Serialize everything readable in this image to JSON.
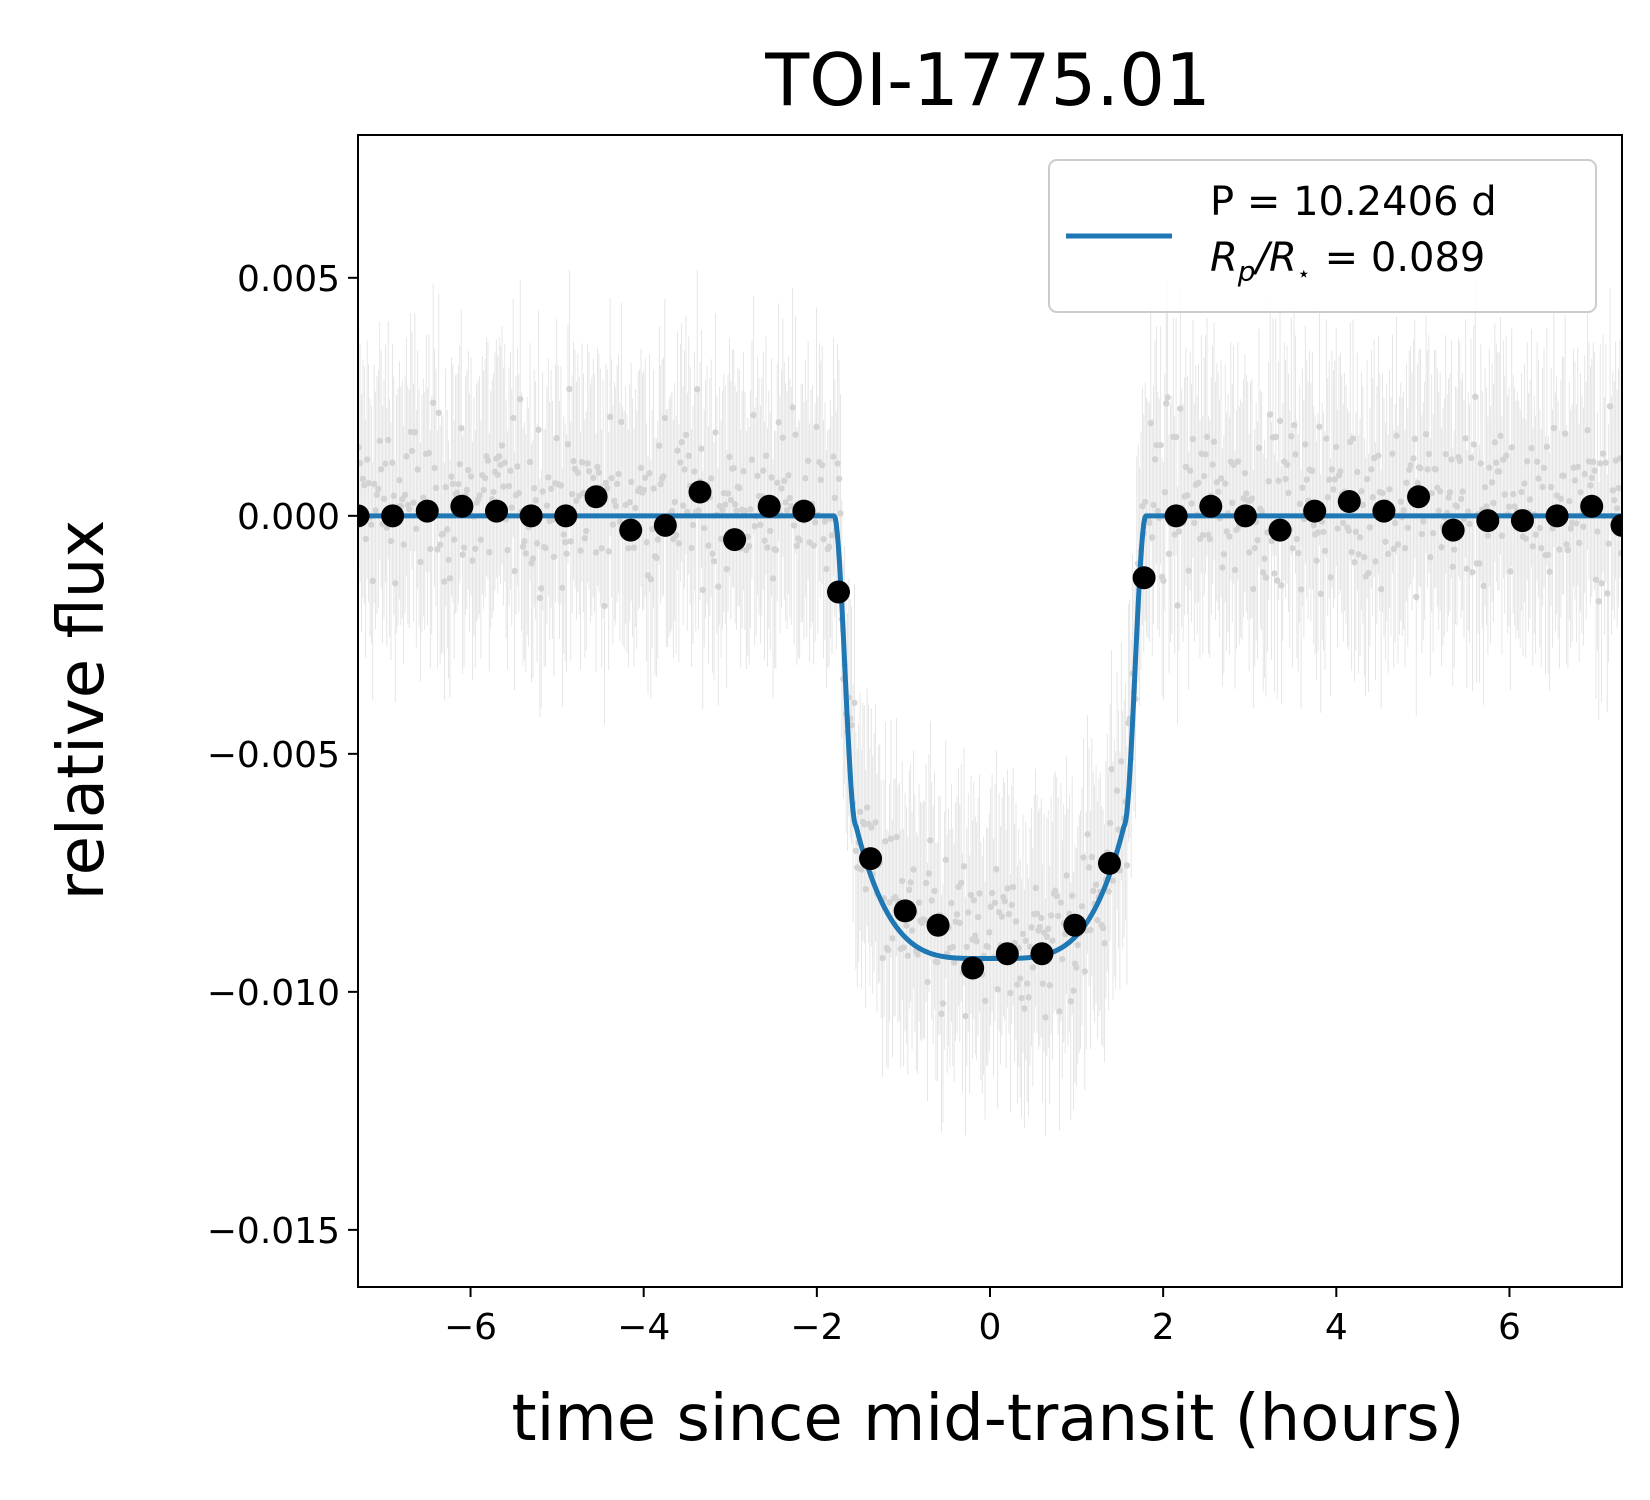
{
  "chart_data": {
    "type": "scatter",
    "title": "TOI-1775.01",
    "xlabel": "time since mid-transit (hours)",
    "ylabel": "relative flux",
    "xlim": [
      -7.3,
      7.3
    ],
    "ylim": [
      -0.0162,
      0.008
    ],
    "x_ticks": [
      -6,
      -4,
      -2,
      0,
      2,
      4,
      6
    ],
    "x_tick_labels": [
      "−6",
      "−4",
      "−2",
      "0",
      "2",
      "4",
      "6"
    ],
    "y_ticks": [
      0.005,
      0.0,
      -0.005,
      -0.01,
      -0.015
    ],
    "y_tick_labels": [
      "0.005",
      "0.000",
      "−0.005",
      "−0.010",
      "−0.015"
    ],
    "legend": {
      "placement": "top-right",
      "period_label": "P = 10.2406 d",
      "radius_ratio": "= 0.089",
      "radius_symbol_R": "R",
      "radius_symbol_p": "p",
      "radius_symbol_Rstar": "/R",
      "radius_symbol_star": "⋆"
    },
    "model": {
      "name": "P = 10.2406 d",
      "color": "#1f77b4",
      "depth": -0.0093,
      "t1": -1.8,
      "t2": -1.55,
      "t3": 1.55,
      "t4": 1.8,
      "x": [
        -7.3,
        -1.8,
        -1.7,
        -1.6,
        -1.55,
        -1.4,
        -1.2,
        -1.0,
        -0.8,
        -0.6,
        -0.4,
        -0.2,
        0.0,
        0.2,
        0.4,
        0.6,
        0.8,
        1.0,
        1.2,
        1.4,
        1.55,
        1.6,
        1.7,
        1.8,
        7.3
      ],
      "y": [
        0.0,
        0.0,
        -0.0018,
        -0.0048,
        -0.0065,
        -0.0078,
        -0.0085,
        -0.0089,
        -0.0091,
        -0.0092,
        -0.0093,
        -0.0093,
        -0.0093,
        -0.0093,
        -0.0093,
        -0.0092,
        -0.0091,
        -0.0089,
        -0.0085,
        -0.0078,
        -0.0065,
        -0.0048,
        -0.0018,
        0.0,
        0.0
      ]
    },
    "binned": {
      "color": "#000000",
      "x": [
        -7.3,
        -6.9,
        -6.5,
        -6.1,
        -5.7,
        -5.3,
        -4.9,
        -4.55,
        -4.15,
        -3.75,
        -3.35,
        -2.95,
        -2.55,
        -2.15,
        -1.75,
        -1.38,
        -0.98,
        -0.6,
        -0.2,
        0.2,
        0.6,
        0.98,
        1.38,
        1.78,
        2.15,
        2.55,
        2.95,
        3.35,
        3.75,
        4.15,
        4.55,
        4.95,
        5.35,
        5.75,
        6.15,
        6.55,
        6.95,
        7.3
      ],
      "y": [
        0.0,
        0.0,
        0.0001,
        0.0002,
        0.0001,
        0.0,
        0.0,
        0.0004,
        -0.0003,
        -0.0002,
        0.0005,
        -0.0005,
        0.0002,
        0.0001,
        -0.0016,
        -0.0072,
        -0.0083,
        -0.0086,
        -0.0095,
        -0.0092,
        -0.0092,
        -0.0086,
        -0.0073,
        -0.0013,
        0.0,
        0.0002,
        0.0,
        -0.0003,
        0.0001,
        0.0003,
        0.0001,
        0.0004,
        -0.0003,
        -0.0001,
        -0.0001,
        0.0,
        0.0002,
        -0.0002
      ]
    },
    "raw_points": {
      "color": "#d3d3d3",
      "count": 900,
      "scatter_std": 0.0022,
      "errorbar_half": 0.0025
    },
    "grid": false
  }
}
